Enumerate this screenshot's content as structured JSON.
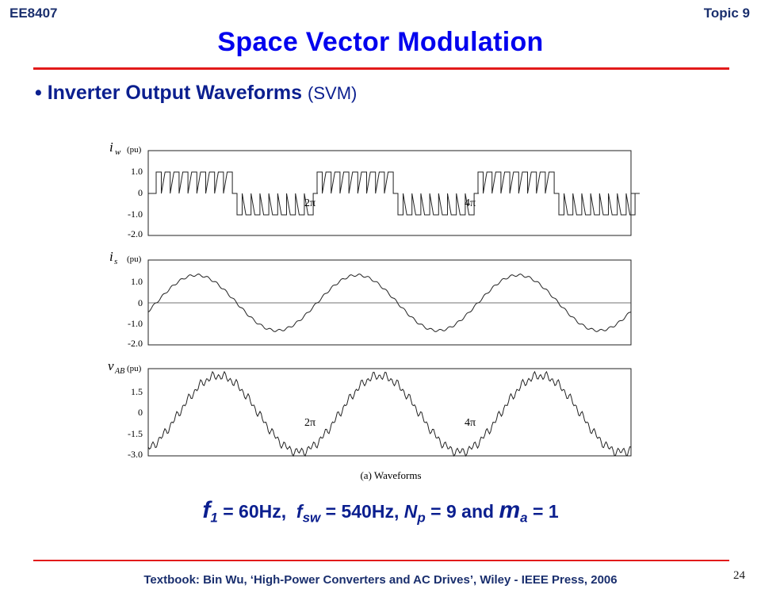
{
  "header": {
    "course": "EE8407",
    "topic": "Topic 9"
  },
  "title": "Space Vector Modulation",
  "bullet": {
    "symbol": "•",
    "text": "Inverter Output Waveforms",
    "paren": "(SVM)"
  },
  "figure": {
    "caption": "(a)  Waveforms",
    "panels": [
      {
        "var": "i",
        "sub": "w",
        "unit": "(pu)",
        "ticks": [
          "1.0",
          "0",
          "-1.0",
          "-2.0"
        ],
        "annotations": [
          "2π",
          "4π"
        ]
      },
      {
        "var": "i",
        "sub": "s",
        "unit": "(pu)",
        "ticks": [
          "1.0",
          "0",
          "-1.0",
          "-2.0"
        ],
        "annotations": []
      },
      {
        "var": "v",
        "sub": "AB",
        "unit": "(pu)",
        "ticks": [
          "1.5",
          "0",
          "-1.5",
          "-3.0"
        ],
        "annotations": [
          "2π",
          "4π"
        ]
      }
    ]
  },
  "equation": {
    "f1": "f",
    "f1_sub": "1",
    "f1_rest": " = 60Hz,  ",
    "fsw": "f",
    "fsw_sub": "sw",
    "fsw_rest": " = 540Hz, ",
    "np": "N",
    "np_sub": "p",
    "np_rest": " = 9 and ",
    "ma": "m",
    "ma_sub": "a",
    "ma_rest": " = 1"
  },
  "footer": "Textbook: Bin Wu, ‘High-Power Converters and AC Drives’, Wiley - IEEE Press, 2006",
  "page_number": "24",
  "colors": {
    "title": "#0000ee",
    "rule": "#e21a1a",
    "bullet": "#0b1f8f"
  }
}
